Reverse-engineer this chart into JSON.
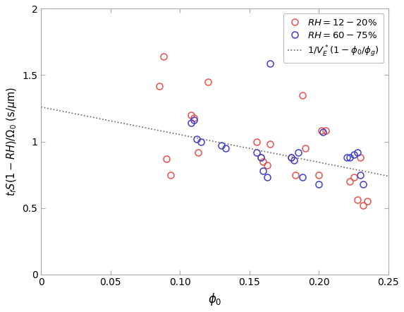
{
  "red_x": [
    0.085,
    0.088,
    0.09,
    0.093,
    0.108,
    0.11,
    0.113,
    0.12,
    0.155,
    0.158,
    0.16,
    0.163,
    0.165,
    0.18,
    0.183,
    0.188,
    0.19,
    0.2,
    0.202,
    0.205,
    0.222,
    0.225,
    0.228,
    0.23,
    0.232,
    0.235
  ],
  "red_y": [
    1.42,
    1.64,
    0.87,
    0.75,
    1.2,
    1.18,
    0.92,
    1.45,
    1.0,
    0.88,
    0.85,
    0.82,
    0.98,
    0.88,
    0.75,
    1.35,
    0.95,
    0.75,
    1.08,
    1.08,
    0.7,
    0.73,
    0.56,
    0.88,
    0.52,
    0.55
  ],
  "blue_x": [
    0.108,
    0.11,
    0.112,
    0.115,
    0.13,
    0.133,
    0.155,
    0.158,
    0.16,
    0.163,
    0.165,
    0.18,
    0.182,
    0.185,
    0.188,
    0.2,
    0.203,
    0.22,
    0.222,
    0.225,
    0.228,
    0.23,
    0.232
  ],
  "blue_y": [
    1.14,
    1.16,
    1.02,
    1.0,
    0.97,
    0.95,
    0.92,
    0.88,
    0.78,
    0.73,
    1.59,
    0.88,
    0.86,
    0.92,
    0.73,
    0.68,
    1.07,
    0.88,
    0.88,
    0.9,
    0.92,
    0.75,
    0.68
  ],
  "line_x": [
    0.0,
    0.25
  ],
  "line_y": [
    1.26,
    0.74
  ],
  "xlabel": "$\\phi_0$",
  "ylabel": "$t_f S(1-RH)/\\Omega_0$ (s/$\\mu$m)",
  "xlim": [
    0.0,
    0.25
  ],
  "ylim": [
    0.0,
    2.0
  ],
  "xticks": [
    0,
    0.05,
    0.1,
    0.15,
    0.2,
    0.25
  ],
  "xtick_labels": [
    "0",
    "0.05",
    "0.10",
    "0.15",
    "0.20",
    "0.25"
  ],
  "yticks": [
    0,
    0.5,
    1.0,
    1.5,
    2.0
  ],
  "ytick_labels": [
    "0",
    "0.5",
    "1",
    "1.5",
    "2"
  ],
  "legend_label_red": "$RH = 12-20\\%$",
  "legend_label_blue": "$RH = 60-75\\%$",
  "legend_label_line": "$1/V_E^*(1-\\phi_0/\\phi_g)$",
  "red_color": "#e8524a",
  "blue_color": "#4040cc",
  "line_color": "#666666",
  "marker_size": 6.5,
  "linewidth": 1.2,
  "figsize": [
    5.73,
    4.42
  ],
  "dpi": 100
}
